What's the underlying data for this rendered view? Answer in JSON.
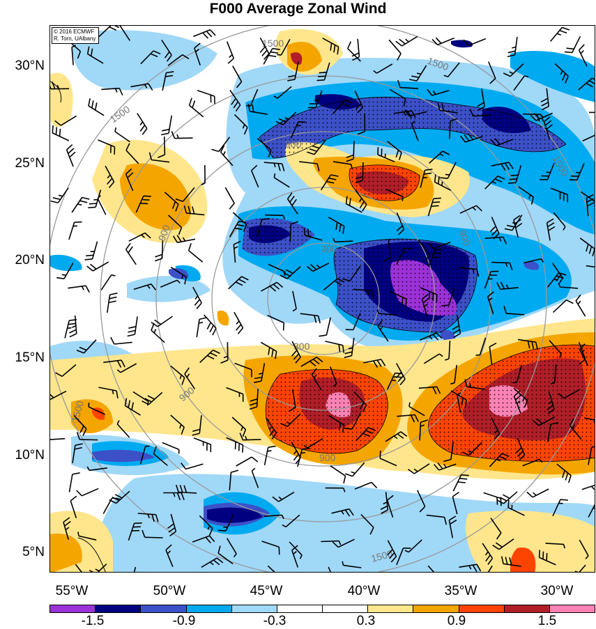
{
  "title": "F000 Average Zonal Wind",
  "credit": {
    "line1": "© 2016 ECMWF",
    "line2": "R. Torn, UAlbany"
  },
  "map": {
    "lat_labels": [
      "30°N",
      "25°N",
      "20°N",
      "15°N",
      "10°N",
      "5°N"
    ],
    "lon_labels": [
      "55°W",
      "50°W",
      "45°W",
      "40°W",
      "35°W",
      "30°W"
    ],
    "radius_contour_labels": [
      "300",
      "300",
      "900",
      "900",
      "900",
      "900",
      "900",
      "1500",
      "1500",
      "1500",
      "1500",
      "1500",
      "1500"
    ]
  },
  "colorbar": {
    "colors": [
      "#9b32d8",
      "#000080",
      "#3c50c8",
      "#00aaf0",
      "#a0d8f8",
      "#ffffff",
      "#ffffff",
      "#ffe68c",
      "#f5a500",
      "#ff4400",
      "#b01e28",
      "#ff82b4"
    ],
    "labels": [
      "-1.5",
      "-0.9",
      "-0.3",
      "0.3",
      "0.9",
      "1.5"
    ]
  }
}
